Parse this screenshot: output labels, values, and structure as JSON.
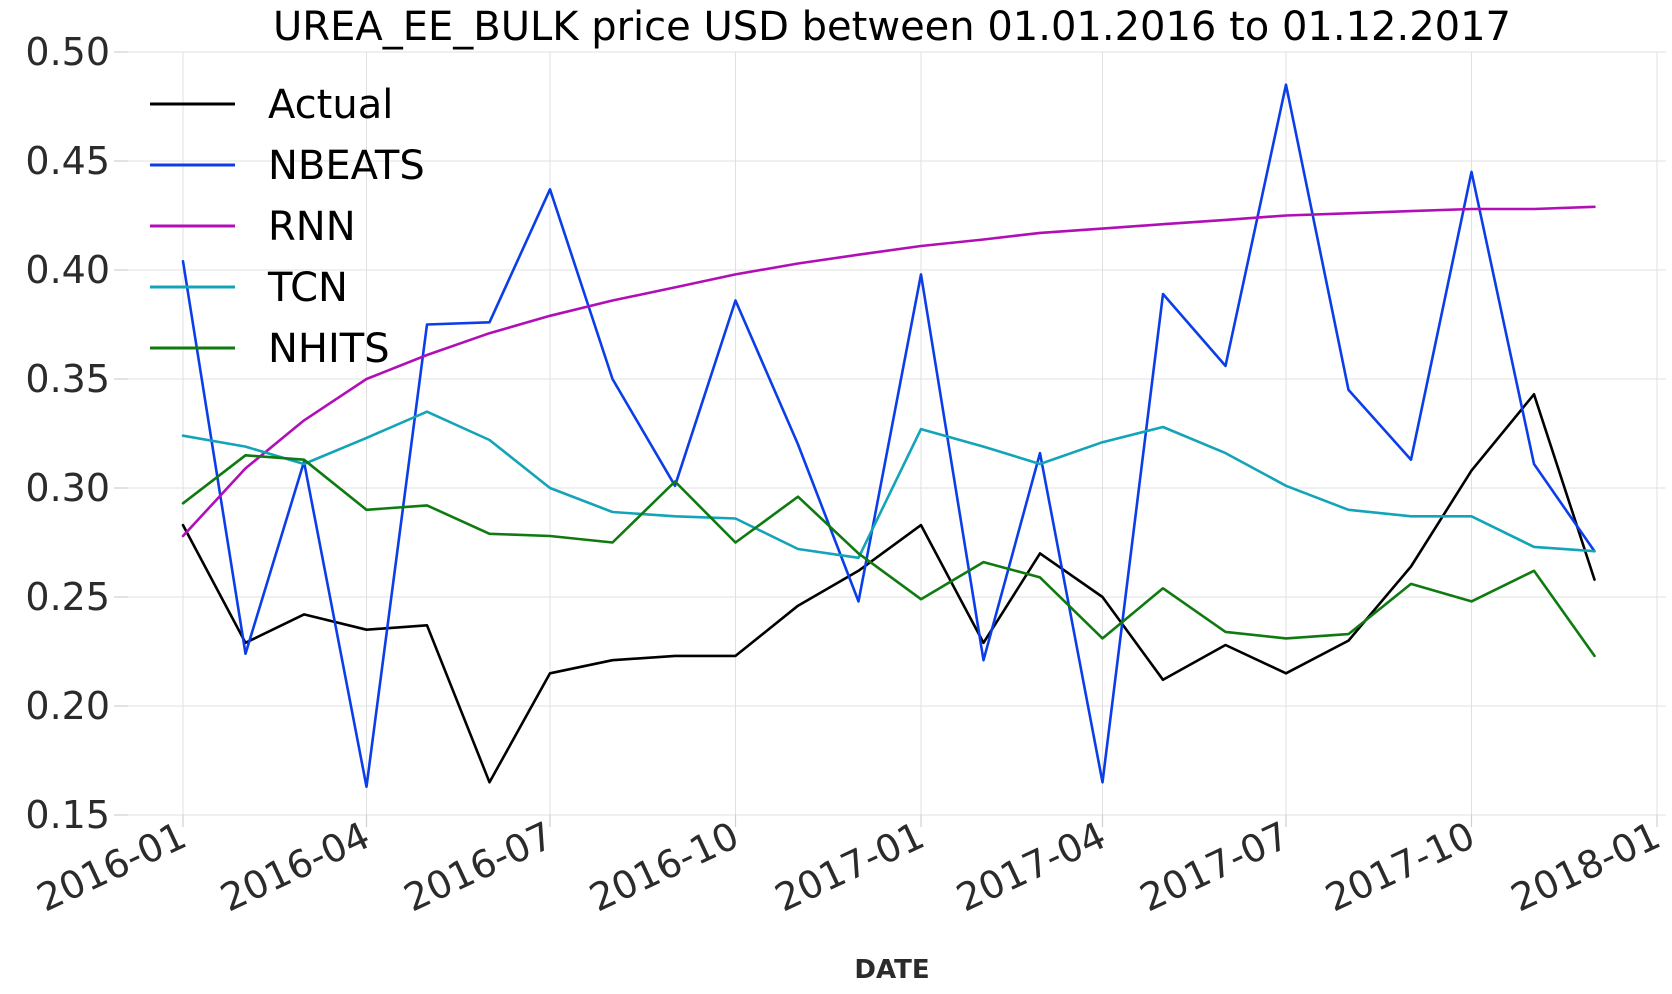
{
  "chart_data": {
    "type": "line",
    "title": "UREA_EE_BULK price USD between 01.01.2016 to 01.12.2017",
    "xlabel": "DATE",
    "ylabel": "",
    "ylim": [
      0.15,
      0.5
    ],
    "yticks": [
      "0.15",
      "0.20",
      "0.25",
      "0.30",
      "0.35",
      "0.40",
      "0.45",
      "0.50"
    ],
    "xlim": [
      "2016-01-01",
      "2018-01-01"
    ],
    "xticks": [
      "2016-01",
      "2016-04",
      "2016-07",
      "2016-10",
      "2017-01",
      "2017-04",
      "2017-07",
      "2017-10",
      "2018-01"
    ],
    "grid": true,
    "legend_position": "top-left",
    "x": [
      "2016-01-01",
      "2016-02-01",
      "2016-03-01",
      "2016-04-01",
      "2016-05-01",
      "2016-06-01",
      "2016-07-01",
      "2016-08-01",
      "2016-09-01",
      "2016-10-01",
      "2016-11-01",
      "2016-12-01",
      "2017-01-01",
      "2017-02-01",
      "2017-03-01",
      "2017-04-01",
      "2017-05-01",
      "2017-06-01",
      "2017-07-01",
      "2017-08-01",
      "2017-09-01",
      "2017-10-01",
      "2017-11-01",
      "2017-12-01"
    ],
    "series": [
      {
        "name": "Actual",
        "color": "#000000",
        "values": [
          0.283,
          0.229,
          0.242,
          0.235,
          0.237,
          0.165,
          0.215,
          0.221,
          0.223,
          0.223,
          0.246,
          0.262,
          0.283,
          0.229,
          0.27,
          0.25,
          0.212,
          0.228,
          0.215,
          0.23,
          0.264,
          0.308,
          0.343,
          0.258
        ]
      },
      {
        "name": "NBEATS",
        "color": "#0b3ee8",
        "values": [
          0.404,
          0.224,
          0.312,
          0.163,
          0.375,
          0.376,
          0.437,
          0.35,
          0.301,
          0.386,
          0.32,
          0.248,
          0.398,
          0.221,
          0.316,
          0.165,
          0.389,
          0.356,
          0.485,
          0.345,
          0.313,
          0.445,
          0.311,
          0.271
        ]
      },
      {
        "name": "RNN",
        "color": "#b10fb6",
        "values": [
          0.278,
          0.309,
          0.331,
          0.35,
          0.361,
          0.371,
          0.379,
          0.386,
          0.392,
          0.398,
          0.403,
          0.407,
          0.411,
          0.414,
          0.417,
          0.419,
          0.421,
          0.423,
          0.425,
          0.426,
          0.427,
          0.428,
          0.428,
          0.429
        ]
      },
      {
        "name": "TCN",
        "color": "#13a4b8",
        "values": [
          0.324,
          0.319,
          0.311,
          0.323,
          0.335,
          0.322,
          0.3,
          0.289,
          0.287,
          0.286,
          0.272,
          0.268,
          0.327,
          0.319,
          0.311,
          0.321,
          0.328,
          0.316,
          0.301,
          0.29,
          0.287,
          0.287,
          0.273,
          0.271
        ]
      },
      {
        "name": "NHITS",
        "color": "#0f7a0f",
        "values": [
          0.293,
          0.315,
          0.313,
          0.29,
          0.292,
          0.279,
          0.278,
          0.275,
          0.303,
          0.275,
          0.296,
          0.27,
          0.249,
          0.266,
          0.259,
          0.231,
          0.254,
          0.234,
          0.231,
          0.233,
          0.256,
          0.248,
          0.262,
          0.223
        ]
      }
    ]
  }
}
